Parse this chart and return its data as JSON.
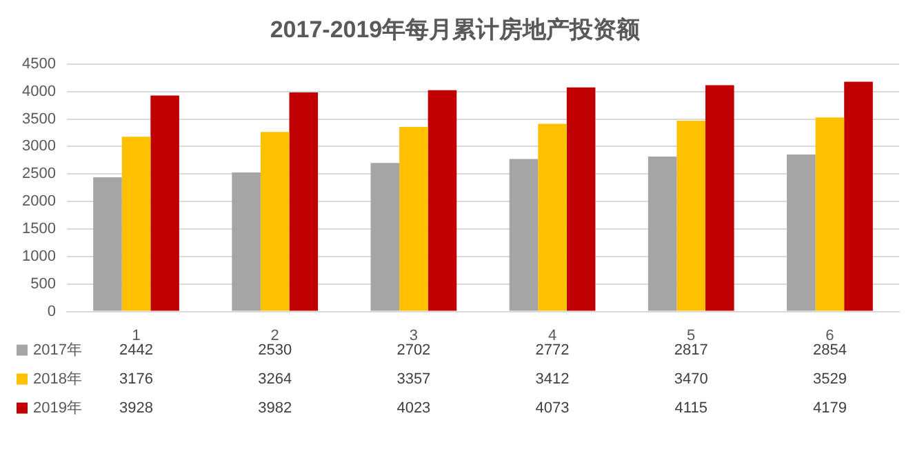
{
  "chart_data": {
    "type": "bar",
    "title": "2017-2019年每月累计房地产投资额",
    "categories": [
      "1",
      "2",
      "3",
      "4",
      "5",
      "6"
    ],
    "series": [
      {
        "name": "2017年",
        "color": "#a5a5a5",
        "values": [
          2442,
          2530,
          2702,
          2772,
          2817,
          2854
        ]
      },
      {
        "name": "2018年",
        "color": "#ffc000",
        "values": [
          3176,
          3264,
          3357,
          3412,
          3470,
          3529
        ]
      },
      {
        "name": "2019年",
        "color": "#c00000",
        "values": [
          3928,
          3982,
          4023,
          4073,
          4115,
          4179
        ]
      }
    ],
    "ylim": [
      0,
      4500
    ],
    "yticks": [
      0,
      500,
      1000,
      1500,
      2000,
      2500,
      3000,
      3500,
      4000,
      4500
    ],
    "grid": "y",
    "legend": "bottom",
    "data_labels": true
  }
}
